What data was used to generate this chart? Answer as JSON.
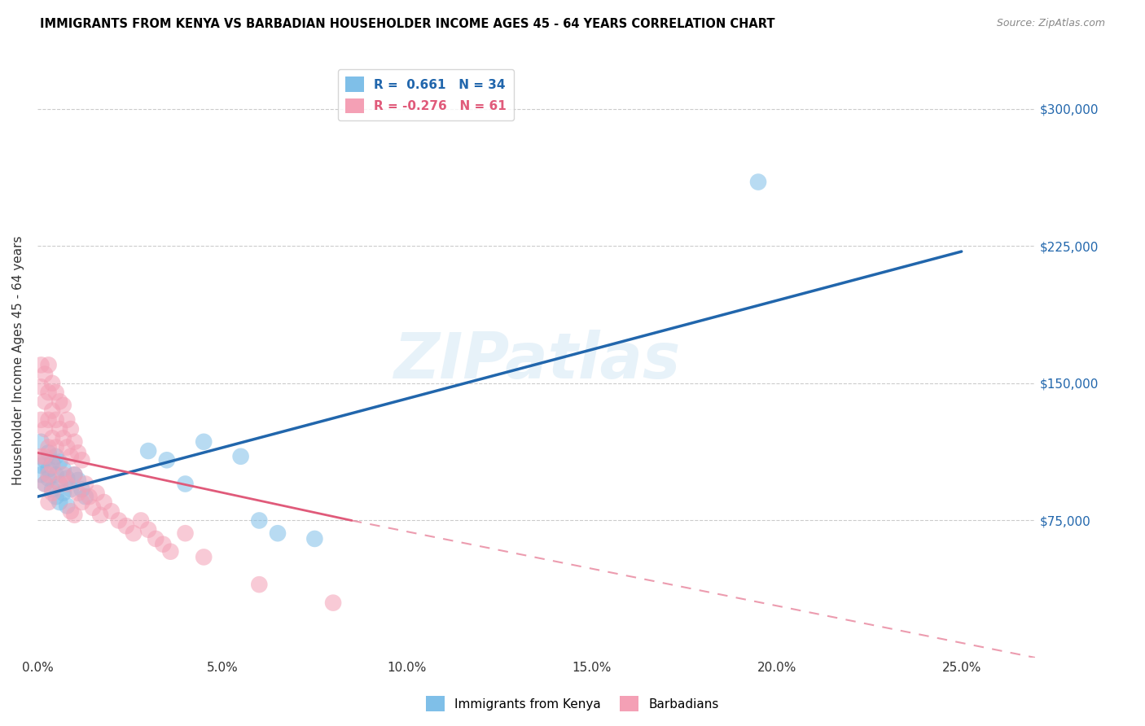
{
  "title": "IMMIGRANTS FROM KENYA VS BARBADIAN HOUSEHOLDER INCOME AGES 45 - 64 YEARS CORRELATION CHART",
  "source": "Source: ZipAtlas.com",
  "ylabel": "Householder Income Ages 45 - 64 years",
  "xlabel_ticks": [
    "0.0%",
    "5.0%",
    "10.0%",
    "15.0%",
    "20.0%",
    "25.0%"
  ],
  "xlabel_vals": [
    0.0,
    0.05,
    0.1,
    0.15,
    0.2,
    0.25
  ],
  "ytick_labels": [
    "$75,000",
    "$150,000",
    "$225,000",
    "$300,000"
  ],
  "ytick_vals": [
    75000,
    150000,
    225000,
    300000
  ],
  "ylim": [
    0,
    325000
  ],
  "xlim": [
    0.0,
    0.27
  ],
  "blue_color": "#7fbfe8",
  "pink_color": "#f4a0b5",
  "blue_line_color": "#2166ac",
  "pink_line_color": "#e05a7a",
  "R_blue": 0.661,
  "N_blue": 34,
  "R_pink": -0.276,
  "N_pink": 61,
  "legend_label_blue": "Immigrants from Kenya",
  "legend_label_pink": "Barbadians",
  "watermark": "ZIPatlas",
  "blue_line_x0": 0.0,
  "blue_line_y0": 88000,
  "blue_line_x1": 0.25,
  "blue_line_y1": 222000,
  "pink_line_solid_x0": 0.0,
  "pink_line_solid_y0": 112000,
  "pink_line_solid_x1": 0.085,
  "pink_line_solid_y1": 75000,
  "pink_line_dash_x0": 0.085,
  "pink_line_dash_y0": 75000,
  "pink_line_dash_x1": 0.27,
  "pink_line_dash_y1": 0,
  "blue_scatter_x": [
    0.001,
    0.001,
    0.002,
    0.002,
    0.003,
    0.003,
    0.003,
    0.004,
    0.004,
    0.005,
    0.005,
    0.005,
    0.006,
    0.006,
    0.006,
    0.007,
    0.007,
    0.008,
    0.008,
    0.009,
    0.01,
    0.011,
    0.012,
    0.013,
    0.03,
    0.035,
    0.04,
    0.045,
    0.055,
    0.06,
    0.065,
    0.075,
    0.195,
    0.001
  ],
  "blue_scatter_y": [
    105000,
    100000,
    108000,
    95000,
    112000,
    103000,
    98000,
    107000,
    92000,
    110000,
    100000,
    88000,
    107000,
    95000,
    85000,
    103000,
    90000,
    98000,
    83000,
    92000,
    100000,
    97000,
    92000,
    88000,
    113000,
    108000,
    95000,
    118000,
    110000,
    75000,
    68000,
    65000,
    260000,
    118000
  ],
  "pink_scatter_x": [
    0.001,
    0.001,
    0.001,
    0.001,
    0.002,
    0.002,
    0.002,
    0.002,
    0.002,
    0.003,
    0.003,
    0.003,
    0.003,
    0.003,
    0.003,
    0.004,
    0.004,
    0.004,
    0.004,
    0.004,
    0.005,
    0.005,
    0.005,
    0.006,
    0.006,
    0.006,
    0.007,
    0.007,
    0.007,
    0.008,
    0.008,
    0.008,
    0.009,
    0.009,
    0.009,
    0.01,
    0.01,
    0.01,
    0.011,
    0.011,
    0.012,
    0.012,
    0.013,
    0.014,
    0.015,
    0.016,
    0.017,
    0.018,
    0.02,
    0.022,
    0.024,
    0.026,
    0.028,
    0.03,
    0.032,
    0.034,
    0.036,
    0.04,
    0.045,
    0.06,
    0.08
  ],
  "pink_scatter_y": [
    160000,
    148000,
    130000,
    110000,
    155000,
    140000,
    125000,
    110000,
    95000,
    160000,
    145000,
    130000,
    115000,
    100000,
    85000,
    150000,
    135000,
    120000,
    105000,
    90000,
    145000,
    130000,
    115000,
    140000,
    125000,
    95000,
    138000,
    120000,
    100000,
    130000,
    115000,
    95000,
    125000,
    110000,
    80000,
    118000,
    100000,
    78000,
    112000,
    90000,
    108000,
    85000,
    95000,
    88000,
    82000,
    90000,
    78000,
    85000,
    80000,
    75000,
    72000,
    68000,
    75000,
    70000,
    65000,
    62000,
    58000,
    68000,
    55000,
    40000,
    30000
  ]
}
